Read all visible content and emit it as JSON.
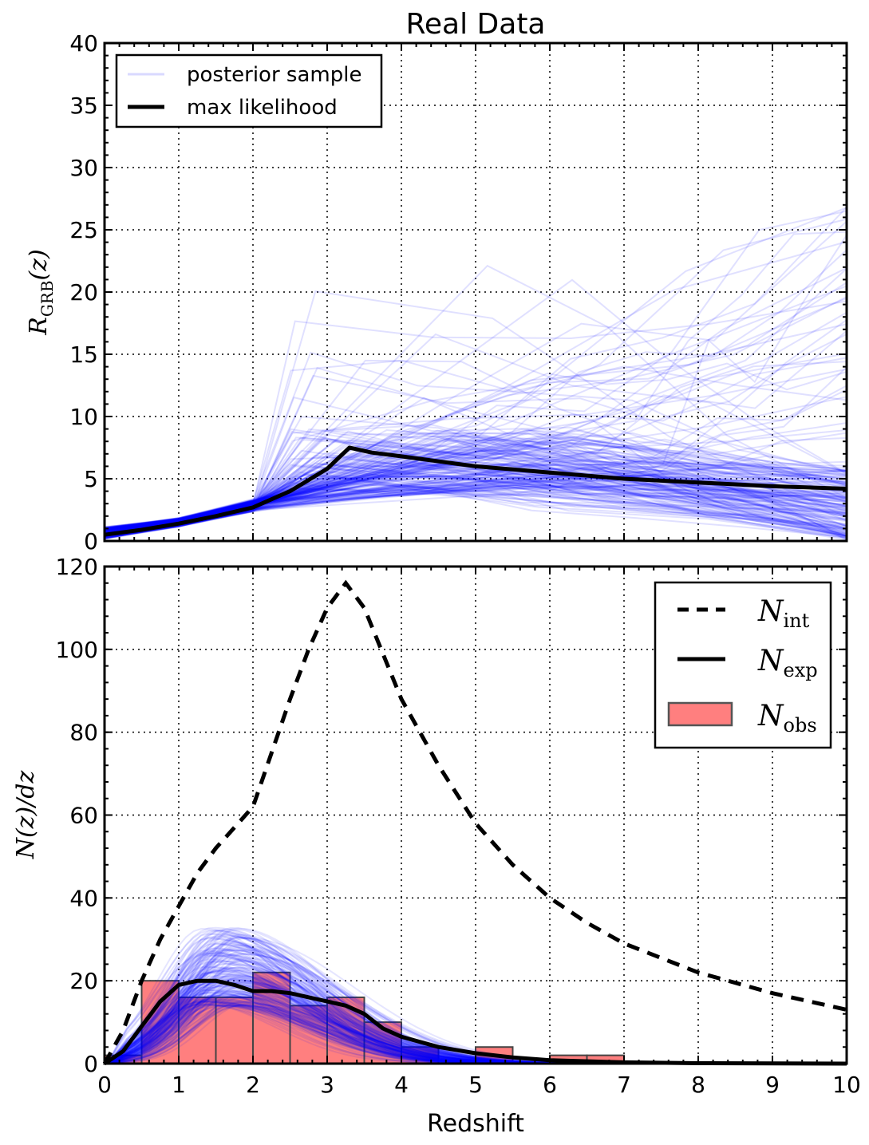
{
  "chart_data": [
    {
      "type": "line",
      "title": "Real Data",
      "xlabel": "",
      "ylabel": "R_GRB(z)",
      "ylabel_main": "R",
      "ylabel_sub": "GRB",
      "ylabel_suffix": "(z)",
      "xlim": [
        0,
        10
      ],
      "ylim": [
        0,
        40
      ],
      "xticks": [
        0,
        1,
        2,
        3,
        4,
        5,
        6,
        7,
        8,
        9,
        10
      ],
      "yticks": [
        0,
        5,
        10,
        15,
        20,
        25,
        30,
        35,
        40
      ],
      "grid": true,
      "legend_position": "top-left",
      "legend": [
        "posterior sample",
        "max likelihood"
      ],
      "colors": {
        "posterior": "#0000ff",
        "max_likelihood": "#000000"
      },
      "series": [
        {
          "name": "max likelihood",
          "x": [
            0,
            0.5,
            1,
            1.5,
            2,
            2.5,
            3,
            3.3,
            3.6,
            4,
            4.5,
            5,
            6,
            7,
            8,
            9,
            10
          ],
          "y": [
            0.5,
            0.9,
            1.4,
            2.0,
            2.7,
            4.0,
            5.8,
            7.5,
            7.1,
            6.8,
            6.4,
            6.0,
            5.5,
            5.0,
            4.7,
            4.4,
            4.2
          ]
        }
      ],
      "posterior_samples": {
        "name": "posterior sample",
        "count": 200,
        "x": [
          0,
          1,
          2
        ],
        "y_low": [
          0.1,
          1.1,
          2.3
        ],
        "y_high": [
          1.2,
          1.9,
          3.4
        ],
        "peak_z_range": [
          2.5,
          7
        ],
        "peak_y_range": [
          4,
          26
        ],
        "tail_y_at_10_range": [
          0,
          27
        ]
      }
    },
    {
      "type": "line",
      "title": "",
      "xlabel": "Redshift",
      "ylabel": "N(z)/dz",
      "xlim": [
        0,
        10
      ],
      "ylim": [
        0,
        120
      ],
      "xticks": [
        0,
        1,
        2,
        3,
        4,
        5,
        6,
        7,
        8,
        9,
        10
      ],
      "yticks": [
        0,
        20,
        40,
        60,
        80,
        100,
        120
      ],
      "grid": true,
      "legend_position": "top-right",
      "legend": [
        {
          "main": "N",
          "sub": "int",
          "style": "dashed"
        },
        {
          "main": "N",
          "sub": "exp",
          "style": "solid"
        },
        {
          "main": "N",
          "sub": "obs",
          "style": "bar"
        }
      ],
      "colors": {
        "N_int": "#000000",
        "N_exp": "#000000",
        "N_obs": "#ff7f7f",
        "posterior": "#0000ff"
      },
      "series": [
        {
          "name": "N_int",
          "x": [
            0,
            0.25,
            0.5,
            0.75,
            1,
            1.25,
            1.5,
            1.75,
            2,
            2.25,
            2.5,
            2.75,
            3,
            3.25,
            3.5,
            4,
            4.5,
            5,
            5.5,
            6,
            6.5,
            7,
            8,
            9,
            10
          ],
          "y": [
            0,
            8,
            20,
            30,
            38,
            46,
            52,
            57,
            62,
            75,
            88,
            100,
            110,
            116,
            110,
            88,
            72,
            58,
            48,
            40,
            34,
            29,
            22,
            17,
            13
          ]
        },
        {
          "name": "N_exp",
          "x": [
            0,
            0.25,
            0.5,
            0.75,
            1,
            1.25,
            1.5,
            1.75,
            2,
            2.25,
            2.5,
            2.75,
            3,
            3.25,
            3.5,
            3.75,
            4,
            4.5,
            5,
            5.5,
            6,
            7,
            8,
            10
          ],
          "y": [
            0,
            3,
            9,
            15,
            19,
            20,
            20,
            19,
            17.5,
            17.5,
            17,
            16,
            15,
            14,
            12,
            8.5,
            6.5,
            4,
            2.5,
            1.5,
            0.8,
            0.3,
            0.1,
            0
          ]
        }
      ],
      "bars": {
        "name": "N_obs",
        "edges": [
          0,
          0.5,
          1,
          1.5,
          2,
          2.5,
          3,
          3.5,
          4,
          4.5,
          5,
          5.5,
          6,
          6.5,
          7
        ],
        "values": [
          2,
          20,
          16,
          16,
          22,
          14,
          16,
          10,
          4,
          0,
          4,
          0,
          2,
          2
        ]
      },
      "posterior_samples": {
        "count": 200,
        "peak_z": 1.6,
        "peak_y_range": [
          14,
          33
        ]
      }
    }
  ]
}
